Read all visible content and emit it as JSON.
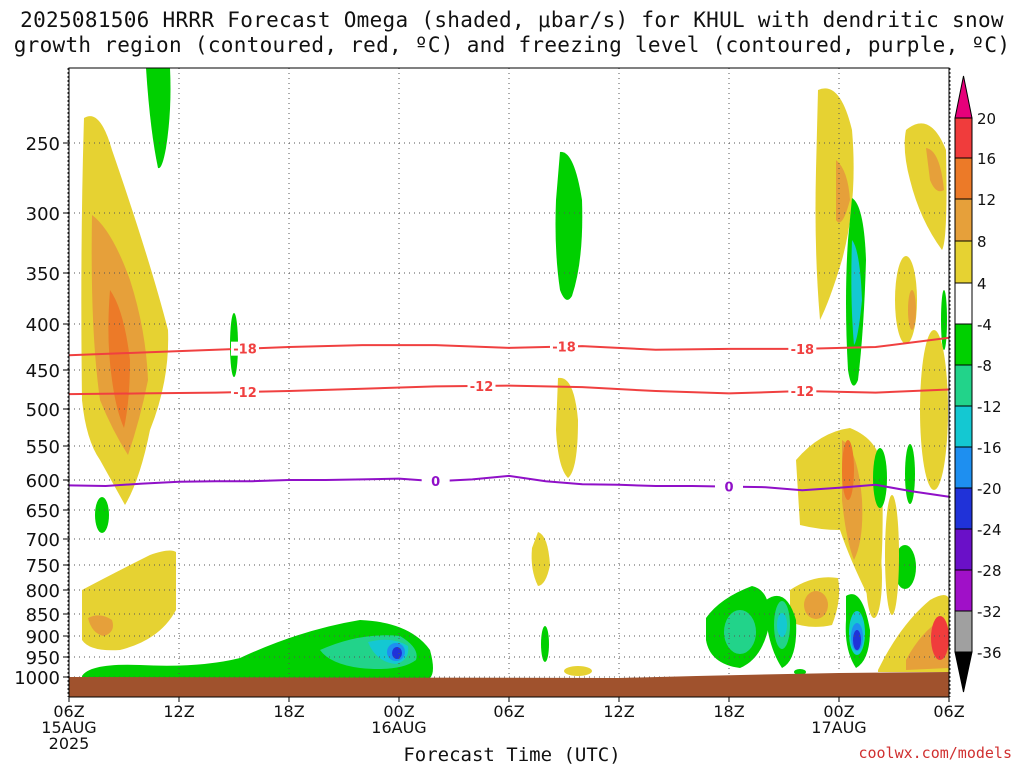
{
  "title": {
    "line1": "2025081506 HRRR Forecast Omega (shaded, μbar/s) for KHUL with dendritic snow",
    "line2": "growth region (contoured, red, ºC) and freezing level (contoured, purple, ºC)"
  },
  "credit": "coolwx.com/models",
  "chart_data": {
    "type": "heatmap",
    "title": "2025081506 HRRR Forecast Omega (shaded, μbar/s) for KHUL with dendritic snow growth region (contoured, red, ºC) and freezing level (contoured, purple, ºC)",
    "xlabel": "Forecast Time (UTC)",
    "ylabel": "",
    "x_range_hours": [
      0,
      48
    ],
    "x_ticks": [
      {
        "hour": 0,
        "label": "06Z",
        "sub": "15AUG",
        "sub2": "2025"
      },
      {
        "hour": 6,
        "label": "12Z"
      },
      {
        "hour": 12,
        "label": "18Z"
      },
      {
        "hour": 18,
        "label": "00Z",
        "sub": "16AUG"
      },
      {
        "hour": 24,
        "label": "06Z"
      },
      {
        "hour": 30,
        "label": "12Z"
      },
      {
        "hour": 36,
        "label": "18Z"
      },
      {
        "hour": 42,
        "label": "00Z",
        "sub": "17AUG"
      },
      {
        "hour": 48,
        "label": "06Z"
      }
    ],
    "y_axis": "pressure (hPa), inverted",
    "y_ticks": [
      250,
      300,
      350,
      400,
      450,
      500,
      550,
      600,
      650,
      700,
      750,
      800,
      850,
      900,
      950,
      1000
    ],
    "grid": true,
    "colorbar": {
      "labels": [
        "20",
        "16",
        "12",
        "8",
        "4",
        "-4",
        "-8",
        "-12",
        "-16",
        "-20",
        "-24",
        "-28",
        "-32",
        "-36"
      ],
      "colors": {
        "above_20": "#e6007a",
        "16_20": "#f03c3c",
        "12_16": "#ec7a28",
        "8_12": "#e6a03a",
        "4_8": "#e6d232",
        "m4_4": "#ffffff",
        "m8_m4": "#00d000",
        "m12_m8": "#22d38a",
        "m16_m12": "#14c8d2",
        "m20_m16": "#1e8ff0",
        "m24_m20": "#2032d8",
        "m28_m24": "#6a10c8",
        "m32_m28": "#a010c8",
        "m36_m32": "#a0a0a0",
        "below_m36": "#000000"
      }
    },
    "contours": {
      "dgz_minus18": {
        "label": "-18",
        "color": "#f04040",
        "hours": [
          0,
          4,
          8,
          12,
          16,
          20,
          24,
          28,
          32,
          36,
          40,
          44,
          48
        ],
        "pressure": [
          434,
          431,
          428,
          425,
          423,
          423,
          426,
          424,
          428,
          427,
          427,
          425,
          415
        ]
      },
      "dgz_minus12": {
        "label": "-12",
        "color": "#f04040",
        "hours": [
          0,
          4,
          8,
          12,
          16,
          20,
          24,
          28,
          32,
          36,
          40,
          44,
          48
        ],
        "pressure": [
          481,
          480,
          479,
          477,
          474,
          471,
          470,
          472,
          477,
          480,
          477,
          479,
          475
        ]
      },
      "freezing_level": {
        "label": "0",
        "color": "#9010c8",
        "hours": [
          0,
          2,
          4,
          6,
          8,
          10,
          12,
          14,
          16,
          18,
          20,
          22,
          24,
          26,
          28,
          30,
          32,
          34,
          36,
          38,
          40,
          42,
          44,
          46,
          48
        ],
        "pressure": [
          609,
          610,
          606,
          603,
          602,
          602,
          600,
          600,
          599,
          598,
          602,
          599,
          594,
          602,
          607,
          608,
          610,
          610,
          611,
          612,
          617,
          613,
          608,
          619,
          628
        ]
      }
    },
    "shaded_regions": [
      {
        "level": "4_8",
        "hour": 1.8,
        "pressure": 430,
        "note": "weak upward-positive band, 230-590 hPa"
      },
      {
        "level": "12_16",
        "hour": 2.5,
        "pressure": 430
      },
      {
        "level": "m8_m4",
        "hour": 5.0,
        "pressure": 210
      },
      {
        "level": "m8_m4",
        "hour": 9.5,
        "pressure": 440
      },
      {
        "level": "m8_m4",
        "hour": 27.5,
        "pressure": 310
      },
      {
        "level": "4_8",
        "hour": 27.5,
        "pressure": 520
      },
      {
        "level": "m12_m8",
        "hour": 17.0,
        "pressure": 935
      },
      {
        "level": "m24_m20",
        "hour": 17.8,
        "pressure": 940
      },
      {
        "level": "m12_m8",
        "hour": 37.8,
        "pressure": 880
      },
      {
        "level": "m16_m12",
        "hour": 40.8,
        "pressure": 860
      },
      {
        "level": "m24_m20",
        "hour": 42.5,
        "pressure": 910
      },
      {
        "level": "m20_m16",
        "hour": 42.5,
        "pressure": 360
      },
      {
        "level": "8_12",
        "hour": 43.0,
        "pressure": 650
      },
      {
        "level": "16_20",
        "hour": 48.0,
        "pressure": 900
      }
    ],
    "terrain_surface_pressure": 1000
  }
}
